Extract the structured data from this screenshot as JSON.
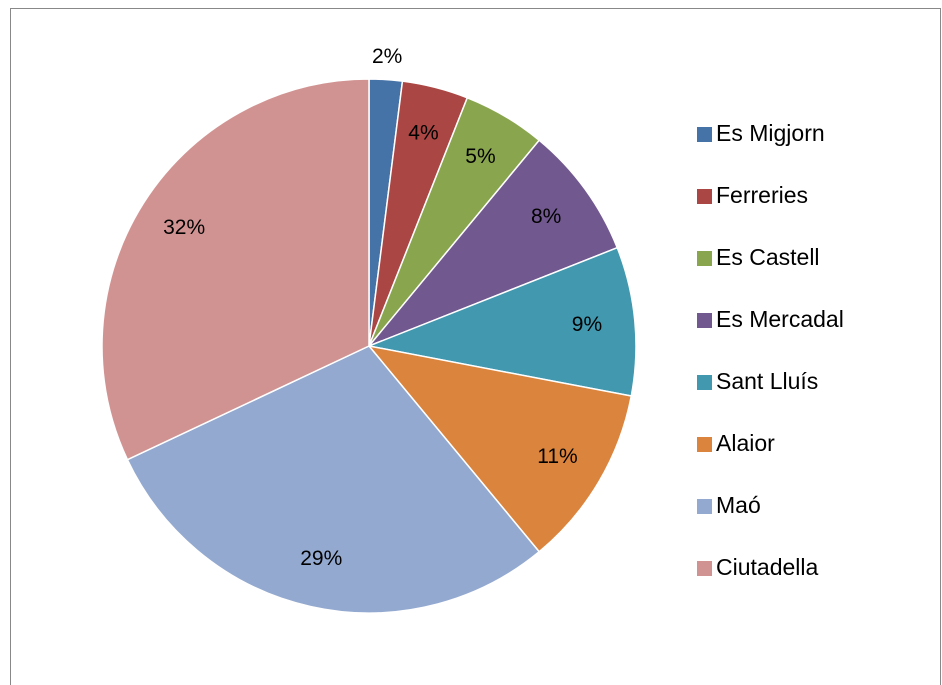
{
  "chart_data": {
    "type": "pie",
    "categories": [
      "Es Migjorn",
      "Ferreries",
      "Es Castell",
      "Es Mercadal",
      "Sant Lluís",
      "Alaior",
      "Maó",
      "Ciutadella"
    ],
    "values": [
      2,
      4,
      5,
      8,
      9,
      11,
      29,
      32
    ],
    "value_labels": [
      "2%",
      "4%",
      "5%",
      "8%",
      "9%",
      "11%",
      "29%",
      "32%"
    ],
    "colors": [
      "#4572a7",
      "#aa4643",
      "#89a54e",
      "#71588f",
      "#4198af",
      "#db843d",
      "#93a9cf",
      "#d19392"
    ],
    "legend": "right"
  }
}
